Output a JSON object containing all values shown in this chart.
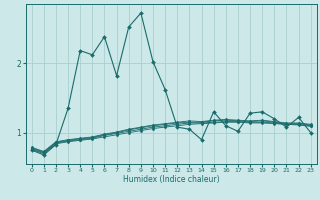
{
  "xlabel": "Humidex (Indice chaleur)",
  "xlim": [
    -0.5,
    23.5
  ],
  "ylim": [
    0.55,
    2.85
  ],
  "background_color": "#cce8e8",
  "grid_color": "#aacfcf",
  "line_color": "#1a6b6b",
  "yticks": [
    1,
    2
  ],
  "xticks": [
    0,
    1,
    2,
    3,
    4,
    5,
    6,
    7,
    8,
    9,
    10,
    11,
    12,
    13,
    14,
    15,
    16,
    17,
    18,
    19,
    20,
    21,
    22,
    23
  ],
  "series": [
    [
      0.75,
      0.68,
      0.83,
      1.35,
      2.18,
      2.12,
      2.38,
      1.82,
      2.52,
      2.72,
      2.02,
      1.62,
      1.08,
      1.05,
      0.9,
      1.3,
      1.1,
      1.02,
      1.28,
      1.3,
      1.2,
      1.08,
      1.22,
      1.0
    ],
    [
      0.76,
      0.7,
      0.84,
      0.87,
      0.89,
      0.91,
      0.94,
      0.97,
      1.0,
      1.03,
      1.06,
      1.08,
      1.1,
      1.12,
      1.13,
      1.14,
      1.15,
      1.15,
      1.14,
      1.14,
      1.13,
      1.12,
      1.11,
      1.09
    ],
    [
      0.77,
      0.71,
      0.85,
      0.88,
      0.9,
      0.92,
      0.96,
      0.99,
      1.02,
      1.05,
      1.08,
      1.1,
      1.12,
      1.14,
      1.14,
      1.15,
      1.16,
      1.16,
      1.15,
      1.15,
      1.14,
      1.12,
      1.12,
      1.1
    ],
    [
      0.78,
      0.72,
      0.86,
      0.89,
      0.91,
      0.93,
      0.97,
      1.0,
      1.04,
      1.07,
      1.1,
      1.12,
      1.14,
      1.15,
      1.15,
      1.17,
      1.18,
      1.17,
      1.16,
      1.17,
      1.15,
      1.13,
      1.13,
      1.11
    ],
    [
      0.79,
      0.73,
      0.87,
      0.9,
      0.92,
      0.94,
      0.98,
      1.01,
      1.05,
      1.08,
      1.11,
      1.13,
      1.15,
      1.17,
      1.16,
      1.18,
      1.19,
      1.18,
      1.17,
      1.18,
      1.16,
      1.14,
      1.14,
      1.12
    ]
  ]
}
